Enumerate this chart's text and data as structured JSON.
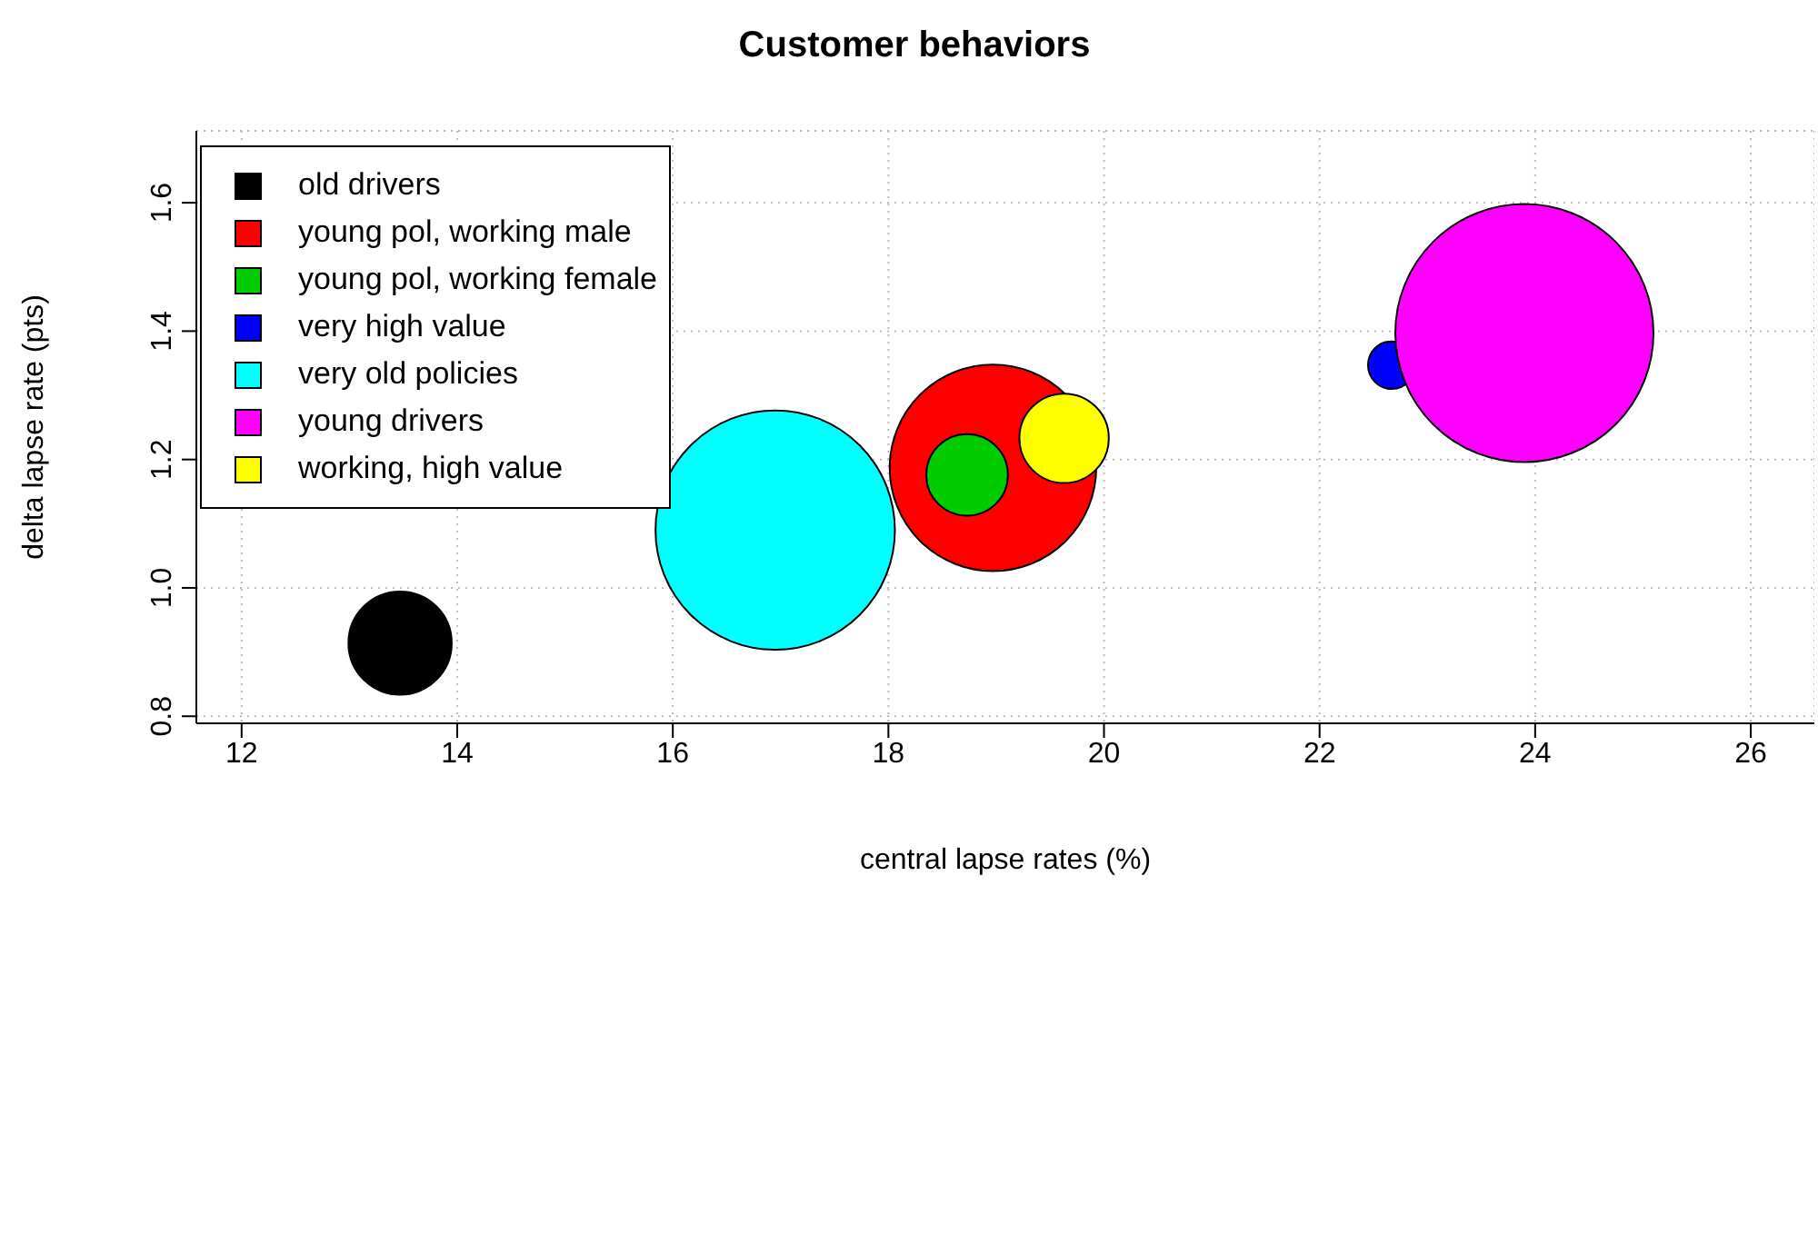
{
  "chart_data": {
    "type": "bubble",
    "title": "Customer behaviors",
    "xlabel": "central lapse rates (%)",
    "ylabel": "delta lapse rate (pts)",
    "xlim": [
      11.58,
      26.59
    ],
    "xticks": [
      12,
      14,
      16,
      18,
      20,
      22,
      24,
      26
    ],
    "ylim": [
      0.789,
      1.712
    ],
    "yticks": [
      0.8,
      {
        "value": 1,
        "label": "1.0"
      },
      1.2,
      1.4,
      1.6
    ],
    "grid": true,
    "legend": "top left",
    "series": [
      {
        "name": "old drivers",
        "color": "#000000",
        "x": [
          13.47
        ],
        "values": [
          0.914
        ],
        "sizes": [
          0.16
        ]
      },
      {
        "name": "young pol, working male",
        "color": "#ff0000",
        "x": [
          18.97
        ],
        "values": [
          1.187
        ],
        "sizes": [
          0.64
        ]
      },
      {
        "name": "young pol, working female",
        "color": "#00cd00",
        "x": [
          18.73
        ],
        "values": [
          1.176
        ],
        "sizes": [
          0.1
        ]
      },
      {
        "name": "very high value",
        "color": "#0000ff",
        "x": [
          22.67
        ],
        "values": [
          1.347
        ],
        "sizes": [
          0.034
        ]
      },
      {
        "name": "very old policies",
        "color": "#00ffff",
        "x": [
          16.95
        ],
        "values": [
          1.09
        ],
        "sizes": [
          0.86
        ]
      },
      {
        "name": "young drivers",
        "color": "#ff00ff",
        "x": [
          23.9
        ],
        "values": [
          1.397
        ],
        "sizes": [
          1
        ]
      },
      {
        "name": "working, high value",
        "color": "#ffff00",
        "x": [
          19.63
        ],
        "values": [
          1.233
        ],
        "sizes": [
          0.12
        ]
      }
    ]
  }
}
